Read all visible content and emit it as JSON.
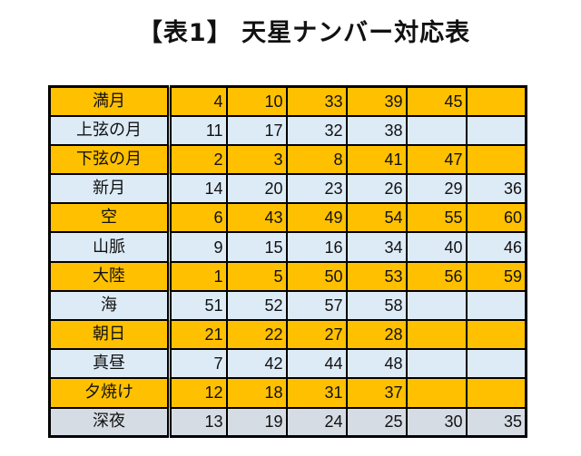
{
  "title": "【表1】 天星ナンバー対応表",
  "colors": {
    "orange_row": "#FFC000",
    "blue_row": "#DDEBF7",
    "gray_row": "#D6DCE4",
    "border": "#000000"
  },
  "table": {
    "rows": [
      {
        "label": "満月",
        "style": "orange",
        "values": [
          "4",
          "10",
          "33",
          "39",
          "45",
          ""
        ]
      },
      {
        "label": "上弦の月",
        "style": "blue",
        "values": [
          "11",
          "17",
          "32",
          "38",
          "",
          ""
        ]
      },
      {
        "label": "下弦の月",
        "style": "orange",
        "values": [
          "2",
          "3",
          "8",
          "41",
          "47",
          ""
        ]
      },
      {
        "label": "新月",
        "style": "blue",
        "values": [
          "14",
          "20",
          "23",
          "26",
          "29",
          "36"
        ]
      },
      {
        "label": "空",
        "style": "orange",
        "values": [
          "6",
          "43",
          "49",
          "54",
          "55",
          "60"
        ]
      },
      {
        "label": "山脈",
        "style": "blue",
        "values": [
          "9",
          "15",
          "16",
          "34",
          "40",
          "46"
        ]
      },
      {
        "label": "大陸",
        "style": "orange",
        "values": [
          "1",
          "5",
          "50",
          "53",
          "56",
          "59"
        ]
      },
      {
        "label": "海",
        "style": "blue",
        "values": [
          "51",
          "52",
          "57",
          "58",
          "",
          ""
        ]
      },
      {
        "label": "朝日",
        "style": "orange",
        "values": [
          "21",
          "22",
          "27",
          "28",
          "",
          ""
        ]
      },
      {
        "label": "真昼",
        "style": "blue",
        "values": [
          "7",
          "42",
          "44",
          "48",
          "",
          ""
        ]
      },
      {
        "label": "夕焼け",
        "style": "orange",
        "values": [
          "12",
          "18",
          "31",
          "37",
          "",
          ""
        ]
      },
      {
        "label": "深夜",
        "style": "gray",
        "values": [
          "13",
          "19",
          "24",
          "25",
          "30",
          "35"
        ]
      }
    ]
  }
}
